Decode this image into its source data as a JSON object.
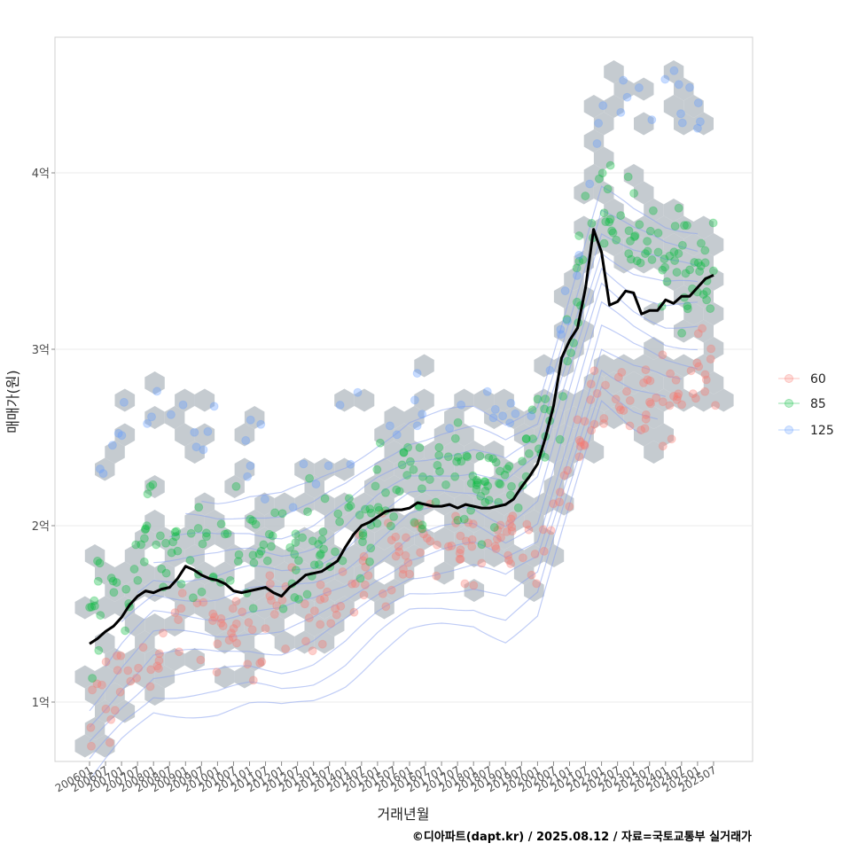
{
  "chart_data": {
    "type": "scatter",
    "title": "",
    "xlabel": "거래년월",
    "ylabel": "매매가(원)",
    "caption": "©디아파트(dapt.kr) / 2025.08.12 / 자료=국토교통부 실거래가",
    "ylim": [
      0.65,
      4.75
    ],
    "xlim": [
      2005.3,
      2026.6
    ],
    "y_ticks": [
      {
        "value": 1,
        "label": "1억"
      },
      {
        "value": 2,
        "label": "2억"
      },
      {
        "value": 3,
        "label": "3억"
      },
      {
        "value": 4,
        "label": "4억"
      }
    ],
    "x_ticks": [
      "200601",
      "200607",
      "200701",
      "200707",
      "200801",
      "200807",
      "200901",
      "200907",
      "201001",
      "201007",
      "201101",
      "201107",
      "201201",
      "201207",
      "201301",
      "201307",
      "201401",
      "201407",
      "201501",
      "201507",
      "201601",
      "201607",
      "201701",
      "201707",
      "201801",
      "201807",
      "201901",
      "201907",
      "202001",
      "202007",
      "202101",
      "202107",
      "202201",
      "202207",
      "202301",
      "202307",
      "202401",
      "202407",
      "202501",
      "202507"
    ],
    "legend": {
      "placement": "right",
      "entries": [
        {
          "label": "60",
          "color": "#F8766D"
        },
        {
          "label": "85",
          "color": "#00BA38"
        },
        {
          "label": "125",
          "color": "#619CFF"
        }
      ]
    },
    "series": [
      {
        "name": "60",
        "kind": "points",
        "color": "#F8766D",
        "trend": [
          [
            2006.0,
            0.95
          ],
          [
            2007.0,
            1.1
          ],
          [
            2008.0,
            1.3
          ],
          [
            2009.0,
            1.35
          ],
          [
            2010.0,
            1.4
          ],
          [
            2011.0,
            1.42
          ],
          [
            2012.0,
            1.45
          ],
          [
            2013.0,
            1.5
          ],
          [
            2014.0,
            1.6
          ],
          [
            2015.0,
            1.75
          ],
          [
            2016.0,
            1.85
          ],
          [
            2017.0,
            1.92
          ],
          [
            2018.0,
            1.95
          ],
          [
            2019.0,
            1.85
          ],
          [
            2020.0,
            1.9
          ],
          [
            2021.0,
            2.4
          ],
          [
            2022.0,
            2.8
          ],
          [
            2023.0,
            2.75
          ],
          [
            2024.0,
            2.75
          ],
          [
            2025.0,
            2.82
          ]
        ],
        "spread": 0.13,
        "count": 230
      },
      {
        "name": "85",
        "kind": "points",
        "color": "#00BA38",
        "trend": [
          [
            2006.0,
            1.45
          ],
          [
            2007.0,
            1.75
          ],
          [
            2008.0,
            1.9
          ],
          [
            2009.0,
            1.85
          ],
          [
            2010.0,
            1.8
          ],
          [
            2011.0,
            1.85
          ],
          [
            2012.0,
            1.8
          ],
          [
            2013.0,
            1.85
          ],
          [
            2014.0,
            1.95
          ],
          [
            2015.0,
            2.1
          ],
          [
            2016.0,
            2.25
          ],
          [
            2017.0,
            2.25
          ],
          [
            2018.0,
            2.25
          ],
          [
            2019.0,
            2.2
          ],
          [
            2020.0,
            2.4
          ],
          [
            2021.0,
            3.1
          ],
          [
            2022.0,
            3.9
          ],
          [
            2023.0,
            3.7
          ],
          [
            2024.0,
            3.55
          ],
          [
            2025.0,
            3.45
          ]
        ],
        "spread": 0.16,
        "count": 300
      },
      {
        "name": "125",
        "kind": "points",
        "color": "#619CFF",
        "trend": [
          [
            2006.0,
            2.0
          ],
          [
            2007.0,
            2.7
          ],
          [
            2008.0,
            2.6
          ],
          [
            2009.0,
            2.6
          ],
          [
            2010.0,
            2.4
          ],
          [
            2011.0,
            2.45
          ],
          [
            2012.0,
            2.35
          ],
          [
            2013.0,
            2.3
          ],
          [
            2014.0,
            2.4
          ],
          [
            2015.0,
            2.55
          ],
          [
            2016.0,
            2.7
          ],
          [
            2017.0,
            2.7
          ],
          [
            2018.0,
            2.55
          ],
          [
            2019.0,
            2.6
          ],
          [
            2020.0,
            2.7
          ],
          [
            2021.0,
            3.3
          ],
          [
            2022.0,
            4.3
          ],
          [
            2023.0,
            4.45
          ],
          [
            2024.0,
            4.5
          ],
          [
            2025.0,
            4.3
          ]
        ],
        "spread": 0.12,
        "count": 70
      },
      {
        "name": "median",
        "kind": "line",
        "color": "#000000",
        "points": [
          [
            2006.0,
            1.33
          ],
          [
            2006.25,
            1.36
          ],
          [
            2006.5,
            1.4
          ],
          [
            2006.75,
            1.43
          ],
          [
            2007.0,
            1.48
          ],
          [
            2007.25,
            1.55
          ],
          [
            2007.5,
            1.6
          ],
          [
            2007.75,
            1.63
          ],
          [
            2008.0,
            1.62
          ],
          [
            2008.25,
            1.64
          ],
          [
            2008.5,
            1.65
          ],
          [
            2008.75,
            1.7
          ],
          [
            2009.0,
            1.77
          ],
          [
            2009.25,
            1.75
          ],
          [
            2009.5,
            1.72
          ],
          [
            2009.75,
            1.7
          ],
          [
            2010.0,
            1.69
          ],
          [
            2010.25,
            1.67
          ],
          [
            2010.5,
            1.63
          ],
          [
            2010.75,
            1.62
          ],
          [
            2011.0,
            1.63
          ],
          [
            2011.25,
            1.64
          ],
          [
            2011.5,
            1.65
          ],
          [
            2011.75,
            1.62
          ],
          [
            2012.0,
            1.6
          ],
          [
            2012.25,
            1.65
          ],
          [
            2012.5,
            1.68
          ],
          [
            2012.75,
            1.72
          ],
          [
            2013.0,
            1.73
          ],
          [
            2013.25,
            1.74
          ],
          [
            2013.5,
            1.77
          ],
          [
            2013.75,
            1.8
          ],
          [
            2014.0,
            1.88
          ],
          [
            2014.25,
            1.95
          ],
          [
            2014.5,
            2.0
          ],
          [
            2014.75,
            2.02
          ],
          [
            2015.0,
            2.05
          ],
          [
            2015.25,
            2.08
          ],
          [
            2015.5,
            2.09
          ],
          [
            2015.75,
            2.09
          ],
          [
            2016.0,
            2.1
          ],
          [
            2016.25,
            2.13
          ],
          [
            2016.5,
            2.12
          ],
          [
            2016.75,
            2.11
          ],
          [
            2017.0,
            2.11
          ],
          [
            2017.25,
            2.12
          ],
          [
            2017.5,
            2.1
          ],
          [
            2017.75,
            2.12
          ],
          [
            2018.0,
            2.11
          ],
          [
            2018.25,
            2.1
          ],
          [
            2018.5,
            2.1
          ],
          [
            2018.75,
            2.11
          ],
          [
            2019.0,
            2.12
          ],
          [
            2019.25,
            2.15
          ],
          [
            2019.5,
            2.22
          ],
          [
            2019.75,
            2.28
          ],
          [
            2020.0,
            2.35
          ],
          [
            2020.25,
            2.5
          ],
          [
            2020.5,
            2.68
          ],
          [
            2020.75,
            2.95
          ],
          [
            2021.0,
            3.05
          ],
          [
            2021.25,
            3.12
          ],
          [
            2021.5,
            3.35
          ],
          [
            2021.75,
            3.68
          ],
          [
            2022.0,
            3.55
          ],
          [
            2022.25,
            3.25
          ],
          [
            2022.5,
            3.27
          ],
          [
            2022.75,
            3.33
          ],
          [
            2023.0,
            3.32
          ],
          [
            2023.25,
            3.2
          ],
          [
            2023.5,
            3.22
          ],
          [
            2023.75,
            3.22
          ],
          [
            2024.0,
            3.28
          ],
          [
            2024.25,
            3.26
          ],
          [
            2024.5,
            3.3
          ],
          [
            2024.75,
            3.3
          ],
          [
            2025.0,
            3.35
          ],
          [
            2025.25,
            3.4
          ],
          [
            2025.5,
            3.42
          ]
        ]
      }
    ]
  }
}
